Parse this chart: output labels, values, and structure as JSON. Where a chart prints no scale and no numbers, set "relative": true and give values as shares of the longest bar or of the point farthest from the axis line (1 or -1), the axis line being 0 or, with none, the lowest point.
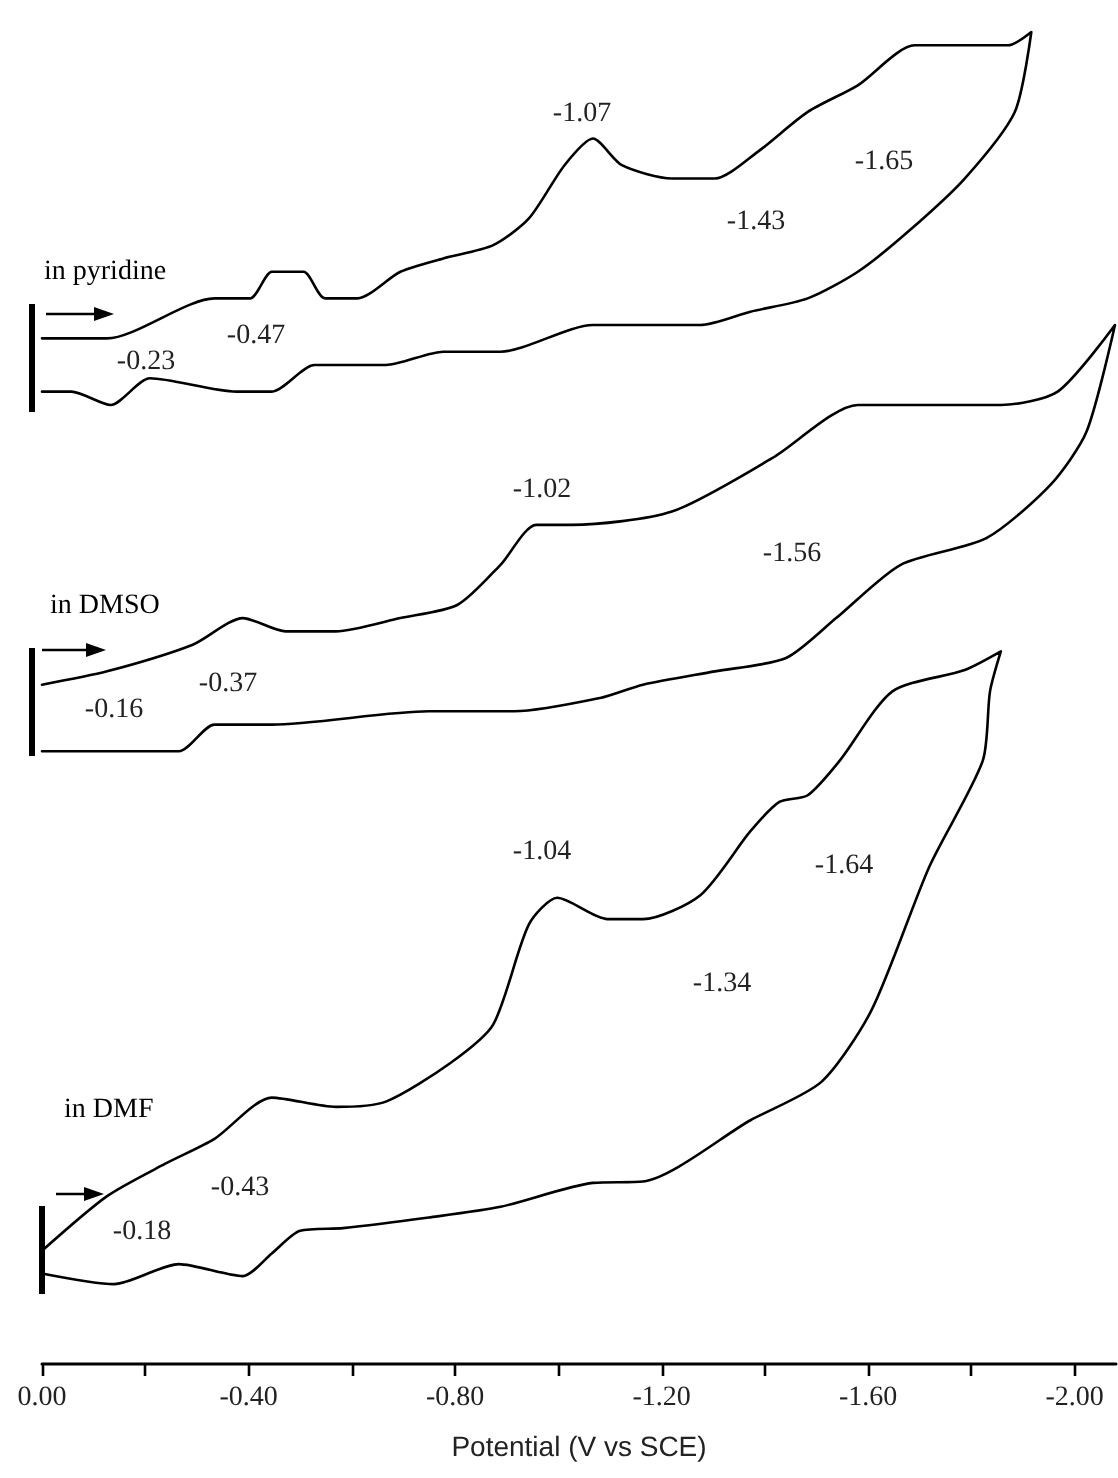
{
  "chart_data": {
    "type": "line",
    "relative": true,
    "xlabel": "Potential (V vs SCE)",
    "xlim": [
      0,
      -2.08
    ],
    "xticks": [
      {
        "value": 0,
        "label": "0.00"
      },
      {
        "value": -0.2,
        "label": null
      },
      {
        "value": -0.4,
        "label": "-0.40"
      },
      {
        "value": -0.6,
        "label": null
      },
      {
        "value": -0.8,
        "label": "-0.80"
      },
      {
        "value": -1.0,
        "label": null
      },
      {
        "value": -1.2,
        "label": "-1.20"
      },
      {
        "value": -1.4,
        "label": null
      },
      {
        "value": -1.6,
        "label": "-1.60"
      },
      {
        "value": -1.8,
        "label": null
      },
      {
        "value": -2.0,
        "label": "-2.00"
      }
    ],
    "series": [
      {
        "name": "in pyridine",
        "color": "#000000",
        "x": [
          0,
          -0.126,
          -0.334,
          -0.403,
          -0.445,
          -0.479,
          -0.507,
          -0.548,
          -0.611,
          -0.694,
          -0.777,
          -0.874,
          -0.943,
          -1.012,
          -1.067,
          -1.123,
          -1.22,
          -1.303,
          -1.386,
          -1.483,
          -1.58,
          -1.69,
          -1.787,
          -1.871,
          -1.916,
          -1.884,
          -1.787,
          -1.677,
          -1.58,
          -1.483,
          -1.372,
          -1.275,
          -1.067,
          -0.888,
          -0.777,
          -0.666,
          -0.528,
          -0.445,
          -0.376,
          -0.209,
          -0.133,
          -0.057,
          0
        ],
        "values": [
          0.77,
          0.77,
          0.8,
          0.8,
          0.82,
          0.82,
          0.82,
          0.8,
          0.8,
          0.82,
          0.83,
          0.84,
          0.86,
          0.9,
          0.92,
          0.9,
          0.89,
          0.89,
          0.91,
          0.94,
          0.96,
          0.99,
          0.99,
          0.99,
          1.0,
          0.94,
          0.89,
          0.85,
          0.82,
          0.8,
          0.79,
          0.78,
          0.78,
          0.76,
          0.76,
          0.75,
          0.75,
          0.73,
          0.73,
          0.74,
          0.72,
          0.73,
          0.73
        ]
      },
      {
        "name": "in DMSO",
        "color": "#000000",
        "x": [
          0,
          -0.126,
          -0.292,
          -0.389,
          -0.472,
          -0.569,
          -0.694,
          -0.805,
          -0.888,
          -0.957,
          -1.026,
          -1.22,
          -1.414,
          -1.58,
          -1.649,
          -1.718,
          -1.857,
          -1.967,
          -2.078,
          -2.023,
          -1.953,
          -1.829,
          -1.663,
          -1.538,
          -1.441,
          -1.303,
          -1.164,
          -1.081,
          -0.915,
          -0.749,
          -0.445,
          -0.334,
          -0.265,
          -0.126,
          0
        ],
        "values": [
          0.51,
          0.52,
          0.54,
          0.56,
          0.55,
          0.55,
          0.56,
          0.57,
          0.6,
          0.63,
          0.63,
          0.64,
          0.68,
          0.72,
          0.72,
          0.72,
          0.72,
          0.73,
          0.78,
          0.7,
          0.66,
          0.62,
          0.6,
          0.56,
          0.53,
          0.52,
          0.51,
          0.5,
          0.49,
          0.49,
          0.48,
          0.48,
          0.46,
          0.46,
          0.46
        ]
      },
      {
        "name": "in DMF",
        "color": "#000000",
        "x": [
          0,
          -0.126,
          -0.237,
          -0.334,
          -0.445,
          -0.569,
          -0.666,
          -0.791,
          -0.874,
          -0.943,
          -0.998,
          -1.095,
          -1.164,
          -1.275,
          -1.372,
          -1.428,
          -1.483,
          -1.545,
          -1.647,
          -1.787,
          -1.857,
          -1.836,
          -1.822,
          -1.718,
          -1.607,
          -1.51,
          -1.372,
          -1.164,
          -1.067,
          -0.888,
          -0.749,
          -0.583,
          -0.5,
          -0.445,
          -0.389,
          -0.265,
          -0.14,
          0
        ],
        "values": [
          0.085,
          0.126,
          0.15,
          0.169,
          0.2,
          0.193,
          0.197,
          0.226,
          0.255,
          0.33,
          0.35,
          0.334,
          0.334,
          0.352,
          0.4,
          0.422,
          0.427,
          0.453,
          0.505,
          0.521,
          0.535,
          0.505,
          0.453,
          0.373,
          0.266,
          0.212,
          0.183,
          0.137,
          0.136,
          0.118,
          0.11,
          0.102,
          0.1,
          0.083,
          0.066,
          0.075,
          0.06,
          0.068
        ]
      }
    ],
    "annotations": [
      "-1.07",
      "-1.65",
      "-1.43",
      "-0.47",
      "-0.23",
      "-1.02",
      "-1.56",
      "-0.37",
      "-0.16",
      "-1.04",
      "-1.64",
      "-1.34",
      "-0.43",
      "-0.18"
    ]
  }
}
